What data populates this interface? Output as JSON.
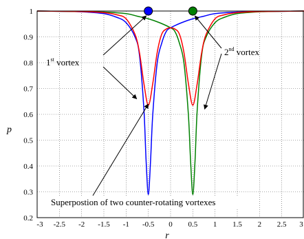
{
  "chart_data": {
    "type": "line",
    "title": "",
    "xlabel": "r",
    "ylabel": "p",
    "xlim": [
      -3,
      3
    ],
    "ylim": [
      0.2,
      1
    ],
    "grid": true,
    "x_ticks": [
      "-3",
      "-2.5",
      "-2",
      "-1.5",
      "-1",
      "-0.5",
      "0",
      "0.5",
      "1",
      "1.5",
      "2",
      "2.5",
      "3"
    ],
    "y_ticks": [
      "0.2",
      "0.3",
      "0.4",
      "0.5",
      "0.6",
      "0.7",
      "0.8",
      "0.9",
      "1"
    ],
    "series": [
      {
        "color": "#0000ff",
        "x": [
          -3,
          -2.5,
          -2,
          -1.5,
          -1.2,
          -1,
          -0.8,
          -0.7,
          -0.6,
          -0.55,
          -0.5,
          -0.45,
          -0.4,
          -0.3,
          -0.2,
          -0.1,
          0,
          0.25,
          0.5,
          0.75,
          1,
          1.5,
          2,
          2.5,
          3
        ],
        "values": [
          1.0,
          0.999,
          0.997,
          0.99,
          0.975,
          0.955,
          0.9,
          0.83,
          0.62,
          0.42,
          0.29,
          0.42,
          0.6,
          0.8,
          0.875,
          0.92,
          0.935,
          0.955,
          0.97,
          0.98,
          0.99,
          0.996,
          0.998,
          0.999,
          1.0
        ]
      },
      {
        "color": "#008000",
        "x": [
          -3,
          -2.5,
          -2,
          -1.5,
          -1,
          -0.75,
          -0.5,
          -0.25,
          0,
          0.1,
          0.2,
          0.3,
          0.4,
          0.45,
          0.5,
          0.55,
          0.6,
          0.7,
          0.8,
          1,
          1.2,
          1.5,
          2,
          2.5,
          3
        ],
        "values": [
          1.0,
          0.999,
          0.998,
          0.996,
          0.99,
          0.98,
          0.97,
          0.955,
          0.935,
          0.92,
          0.875,
          0.8,
          0.6,
          0.42,
          0.29,
          0.42,
          0.62,
          0.83,
          0.9,
          0.955,
          0.975,
          0.99,
          0.997,
          0.999,
          1.0
        ]
      },
      {
        "color": "#ff0000",
        "x": [
          -3,
          -2.5,
          -2,
          -1.5,
          -1.2,
          -1,
          -0.8,
          -0.7,
          -0.6,
          -0.5,
          -0.4,
          -0.3,
          -0.2,
          -0.1,
          0,
          0.1,
          0.2,
          0.3,
          0.4,
          0.5,
          0.6,
          0.7,
          0.8,
          1,
          1.2,
          1.5,
          2,
          2.5,
          3
        ],
        "values": [
          1.0,
          0.999,
          0.998,
          0.994,
          0.985,
          0.97,
          0.91,
          0.84,
          0.72,
          0.635,
          0.72,
          0.84,
          0.91,
          0.93,
          0.935,
          0.93,
          0.91,
          0.84,
          0.72,
          0.635,
          0.72,
          0.84,
          0.91,
          0.97,
          0.985,
          0.994,
          0.998,
          0.999,
          1.0
        ]
      }
    ],
    "markers": [
      {
        "x": -0.5,
        "y": 1.0,
        "color": "#0000ff"
      },
      {
        "x": 0.5,
        "y": 1.0,
        "color": "#008000"
      }
    ],
    "annotations": {
      "first_vortex": {
        "num": "1",
        "sup": "st",
        "text": " vortex"
      },
      "second_vortex": {
        "num": "2",
        "sup": "nd",
        "text": " vortex"
      },
      "superposition": "Superpostion of two counter-rotating vortexes"
    }
  }
}
